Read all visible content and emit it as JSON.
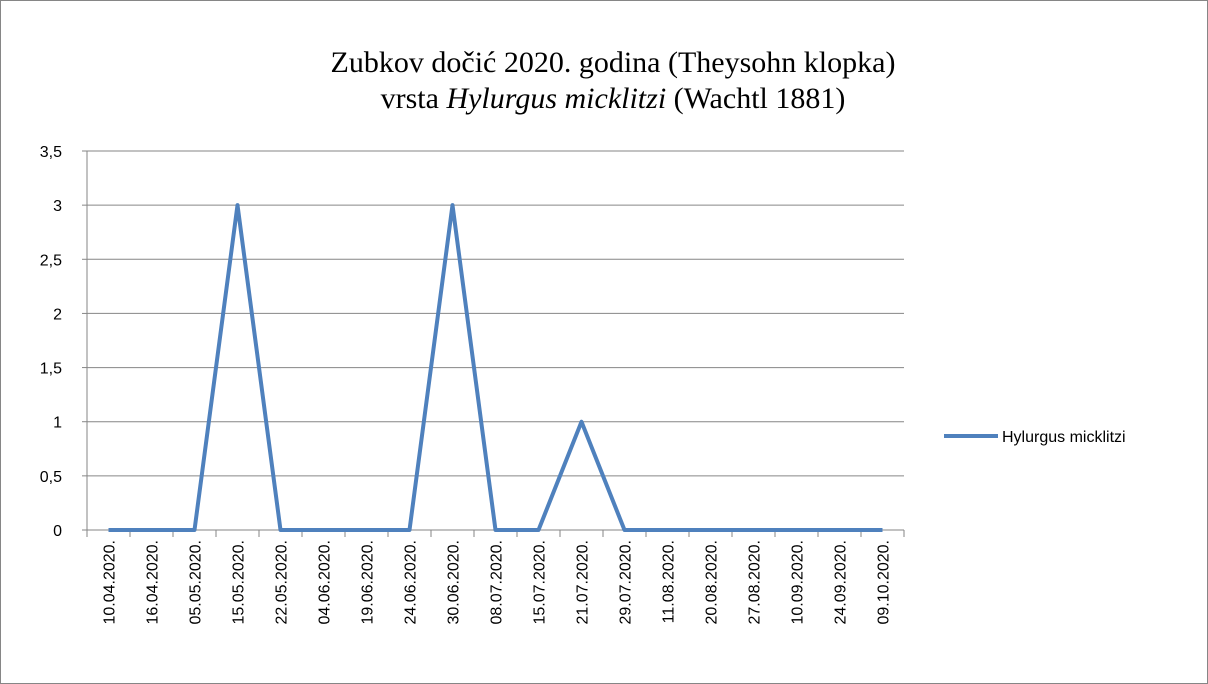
{
  "chart_data": {
    "type": "line",
    "title": "Zubkov dočić 2020. godina (Theysohn klopka)",
    "subtitle": [
      "vrsta ",
      "Hylurgus micklitzi",
      " (Wachtl 1881)"
    ],
    "categories": [
      "10.04.2020.",
      "16.04.2020.",
      "05.05.2020.",
      "15.05.2020.",
      "22.05.2020.",
      "04.06.2020.",
      "19.06.2020.",
      "24.06.2020.",
      "30.06.2020.",
      "08.07.2020.",
      "15.07.2020.",
      "21.07.2020.",
      "29.07.2020.",
      "11.08.2020.",
      "20.08.2020.",
      "27.08.2020.",
      "10.09.2020.",
      "24.09.2020.",
      "09.10.2020."
    ],
    "series": [
      {
        "name": "Hylurgus micklitzi",
        "color": "#4f81bd",
        "values": [
          0,
          0,
          0,
          3,
          0,
          0,
          0,
          0,
          3,
          0,
          0,
          1,
          0,
          0,
          0,
          0,
          0,
          0,
          0
        ]
      }
    ],
    "ylim": [
      0,
      3.5
    ],
    "yticks": [
      0,
      {
        "value": 0.5,
        "label": "0,5"
      },
      1,
      {
        "value": 1.5,
        "label": "1,5"
      },
      2,
      {
        "value": 2.5,
        "label": "2,5"
      },
      3,
      {
        "value": 3.5,
        "label": "3,5"
      }
    ],
    "grid": true,
    "legend": "right"
  }
}
